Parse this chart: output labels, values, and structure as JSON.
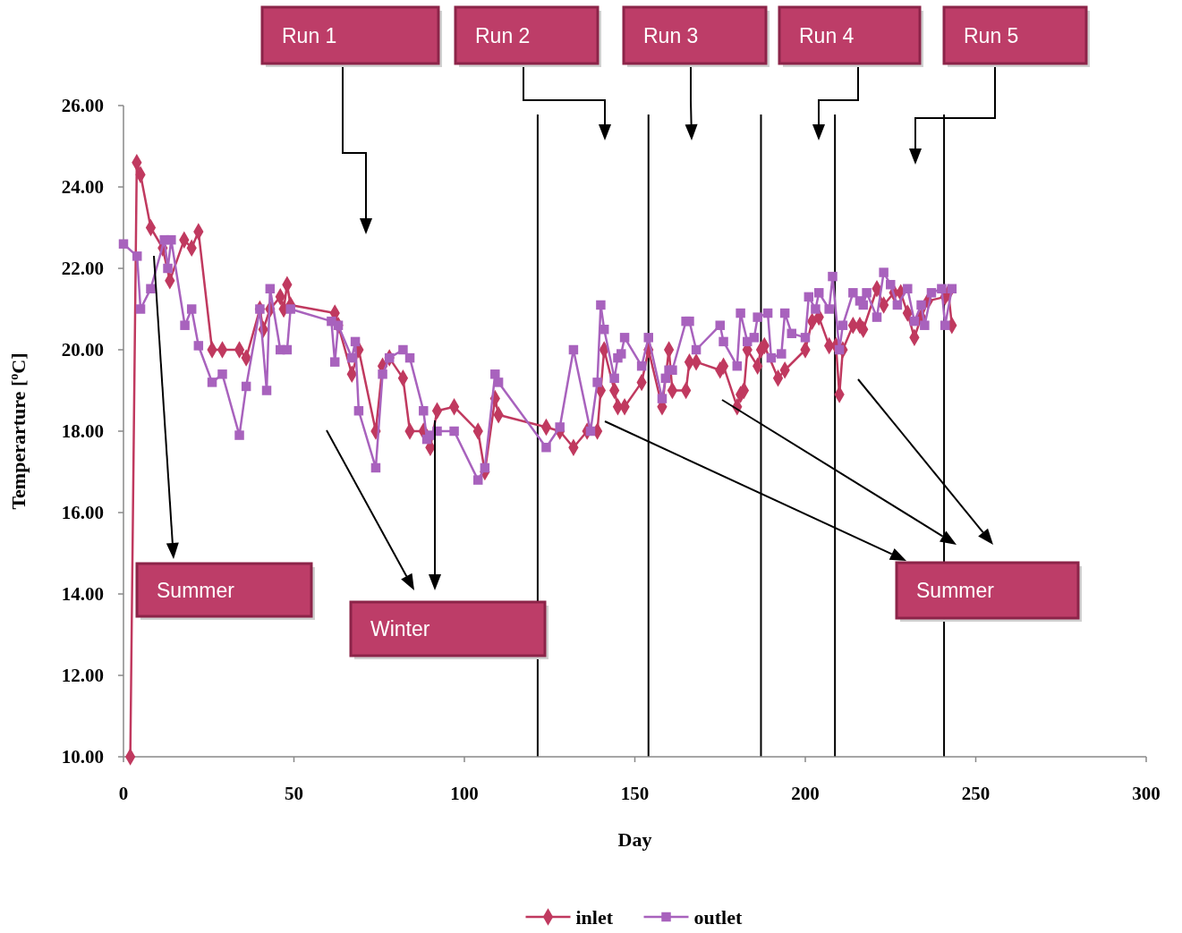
{
  "chart_data": {
    "type": "line",
    "xlabel": "Day",
    "ylabel": "Temperarture [$^{o}$C]",
    "xlim": [
      0,
      300
    ],
    "xticks": [
      0,
      50,
      100,
      150,
      200,
      250,
      300
    ],
    "ylim": [
      10,
      26
    ],
    "yticks": [
      {
        "value": 10,
        "label": "10.00"
      },
      {
        "value": 12,
        "label": "12.00"
      },
      {
        "value": 14,
        "label": "14.00"
      },
      {
        "value": 16,
        "label": "16.00"
      },
      {
        "value": 18,
        "label": "18.00"
      },
      {
        "value": 20,
        "label": "20.00"
      },
      {
        "value": 22,
        "label": "22.00"
      },
      {
        "value": 24,
        "label": "24.00"
      },
      {
        "value": 26,
        "label": "26.00"
      }
    ],
    "grid": false,
    "legend": "bottom",
    "series": [
      {
        "name": "inlet",
        "color": "#c0395f",
        "marker": "diamond",
        "x": [
          2,
          3.9,
          5,
          8,
          11.5,
          13.6,
          17.8,
          20,
          22,
          26,
          29,
          34,
          36,
          40,
          41,
          43,
          46,
          47,
          48,
          49,
          62,
          63,
          67,
          69,
          74,
          76,
          78,
          82,
          84,
          88,
          90,
          92,
          97,
          104,
          106,
          109,
          110,
          124,
          128,
          132,
          136,
          139,
          140,
          141,
          144,
          145,
          147,
          152,
          154,
          158,
          160,
          161,
          165,
          166,
          168,
          175,
          176,
          180,
          181,
          182,
          183,
          186,
          187,
          188,
          192,
          194,
          200,
          202,
          204,
          207,
          209,
          210,
          211,
          214,
          216,
          217,
          221,
          223,
          226,
          228,
          230,
          232,
          234,
          236,
          241,
          242,
          243
        ],
        "values": [
          10.0,
          24.6,
          24.3,
          23.0,
          22.5,
          21.7,
          22.7,
          22.5,
          22.9,
          20.0,
          20.0,
          20.0,
          19.8,
          21.0,
          20.5,
          21.0,
          21.3,
          21.0,
          21.6,
          21.1,
          20.9,
          20.6,
          19.4,
          20.0,
          18.0,
          19.6,
          19.8,
          19.3,
          18.0,
          18.0,
          17.6,
          18.5,
          18.6,
          18.0,
          17.0,
          18.8,
          18.4,
          18.1,
          18.0,
          17.6,
          18.0,
          18.0,
          19.0,
          20.0,
          19.0,
          18.6,
          18.6,
          19.2,
          20.0,
          18.6,
          20.0,
          19.0,
          19.0,
          19.7,
          19.7,
          19.5,
          19.6,
          18.6,
          18.9,
          19.0,
          20.0,
          19.6,
          20.0,
          20.1,
          19.3,
          19.5,
          20.0,
          20.7,
          20.8,
          20.1,
          20.1,
          18.9,
          20.0,
          20.6,
          20.6,
          20.5,
          21.5,
          21.1,
          21.4,
          21.4,
          20.9,
          20.3,
          20.8,
          21.2,
          21.3,
          21.4,
          20.6
        ]
      },
      {
        "name": "outlet",
        "color": "#a862bd",
        "marker": "square",
        "x": [
          0,
          4,
          5,
          8,
          12,
          13,
          14,
          18,
          20,
          22,
          26,
          29,
          34,
          36,
          40,
          42,
          43,
          46,
          48,
          49,
          61,
          62,
          63,
          67,
          68,
          69,
          74,
          76,
          78,
          82,
          84,
          88,
          89,
          90,
          92,
          97,
          104,
          106,
          109,
          110,
          124,
          128,
          132,
          137,
          139,
          140,
          141,
          144,
          145,
          146,
          147,
          152,
          154,
          158,
          159,
          160,
          161,
          165,
          166,
          168,
          175,
          176,
          180,
          181,
          183,
          185,
          186,
          189,
          190,
          193,
          194,
          196,
          200,
          201,
          203,
          204,
          207,
          208,
          210,
          211,
          214,
          216,
          217,
          218,
          221,
          223,
          225,
          227,
          230,
          232,
          234,
          235,
          237,
          240,
          241,
          243
        ],
        "values": [
          22.6,
          22.3,
          21.0,
          21.5,
          22.7,
          22.0,
          22.7,
          20.6,
          21.0,
          20.1,
          19.2,
          19.4,
          17.9,
          19.1,
          21.0,
          19.0,
          21.5,
          20.0,
          20.0,
          21.0,
          20.7,
          19.7,
          20.6,
          19.8,
          20.2,
          18.5,
          17.1,
          19.4,
          19.8,
          20.0,
          19.8,
          18.5,
          17.8,
          17.9,
          18.0,
          18.0,
          16.8,
          17.1,
          19.4,
          19.2,
          17.6,
          18.1,
          20.0,
          18.0,
          19.2,
          21.1,
          20.5,
          19.3,
          19.8,
          19.9,
          20.3,
          19.6,
          20.3,
          18.8,
          19.3,
          19.5,
          19.5,
          20.7,
          20.7,
          20.0,
          20.6,
          20.2,
          19.6,
          20.9,
          20.2,
          20.3,
          20.8,
          20.9,
          19.8,
          19.9,
          20.9,
          20.4,
          20.3,
          21.3,
          21.0,
          21.4,
          21.0,
          21.8,
          20.0,
          20.6,
          21.4,
          21.2,
          21.1,
          21.4,
          20.8,
          21.9,
          21.6,
          21.1,
          21.5,
          20.7,
          21.1,
          20.6,
          21.4,
          21.5,
          20.6,
          21.5
        ]
      }
    ],
    "ref_lines": [
      {
        "axis": "x",
        "value": 121.5,
        "color": "#000000"
      },
      {
        "axis": "x",
        "value": 154,
        "color": "#000000"
      },
      {
        "axis": "x",
        "value": 187,
        "color": "#000000"
      },
      {
        "axis": "x",
        "value": 208.7,
        "color": "#000000"
      },
      {
        "axis": "x",
        "value": 240.7,
        "color": "#000000"
      }
    ],
    "annotations": [
      "Run 1",
      "Run 2",
      "Run 3",
      "Run 4",
      "Run 5",
      "Summer",
      "Winter",
      "Summer"
    ]
  }
}
